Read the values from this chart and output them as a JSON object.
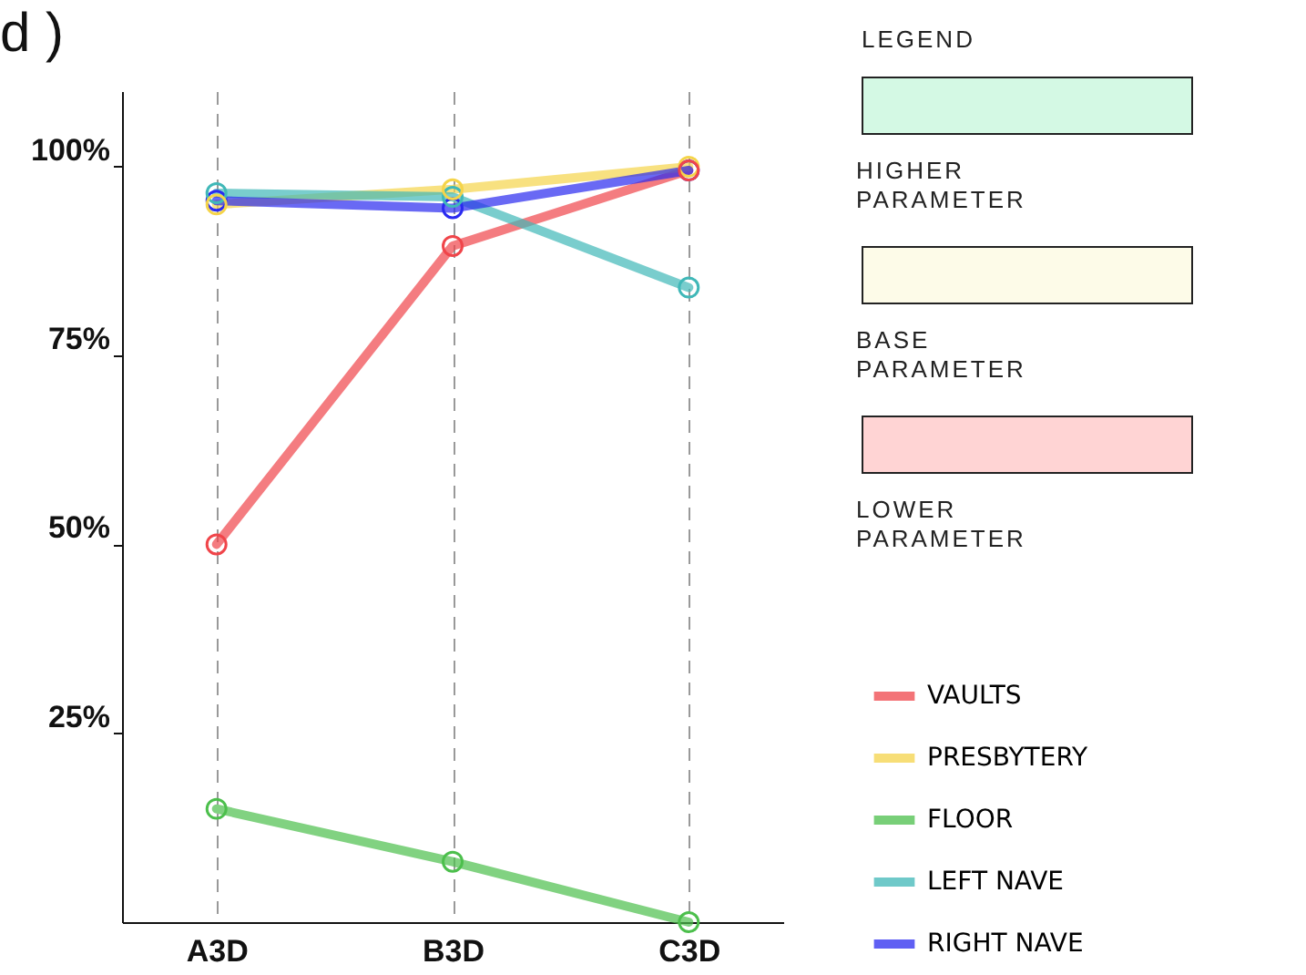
{
  "chart_data": {
    "type": "line",
    "title": "d )",
    "categories": [
      "A3D",
      "B3D",
      "C3D"
    ],
    "series": [
      {
        "name": "VAULTS",
        "color": "#f0454a",
        "values": [
          50,
          89.5,
          99.5
        ]
      },
      {
        "name": "PRESBYTERY",
        "color": "#f5d44a",
        "values": [
          95,
          97,
          100
        ]
      },
      {
        "name": "FLOOR",
        "color": "#4cbf4c",
        "values": [
          15,
          8,
          0
        ]
      },
      {
        "name": "LEFT NAVE",
        "color": "#40b8b8",
        "values": [
          96.5,
          96,
          84
        ]
      },
      {
        "name": "RIGHT NAVE",
        "color": "#2a2af0",
        "values": [
          95.5,
          94.5,
          99.5
        ]
      }
    ],
    "ylim": [
      0,
      110
    ],
    "yticks": [
      {
        "value": 25,
        "label": "25%"
      },
      {
        "value": 50,
        "label": "50%"
      },
      {
        "value": 75,
        "label": "75%"
      },
      {
        "value": 100,
        "label": "100%"
      }
    ],
    "grid": "x",
    "marker": "circle",
    "line_style": "solid",
    "legend": "bottom right",
    "annotations": [
      "LEGEND",
      "HIGHER PARAMETER",
      "BASE PARAMETER",
      "LOWER PARAMETER"
    ]
  }
}
